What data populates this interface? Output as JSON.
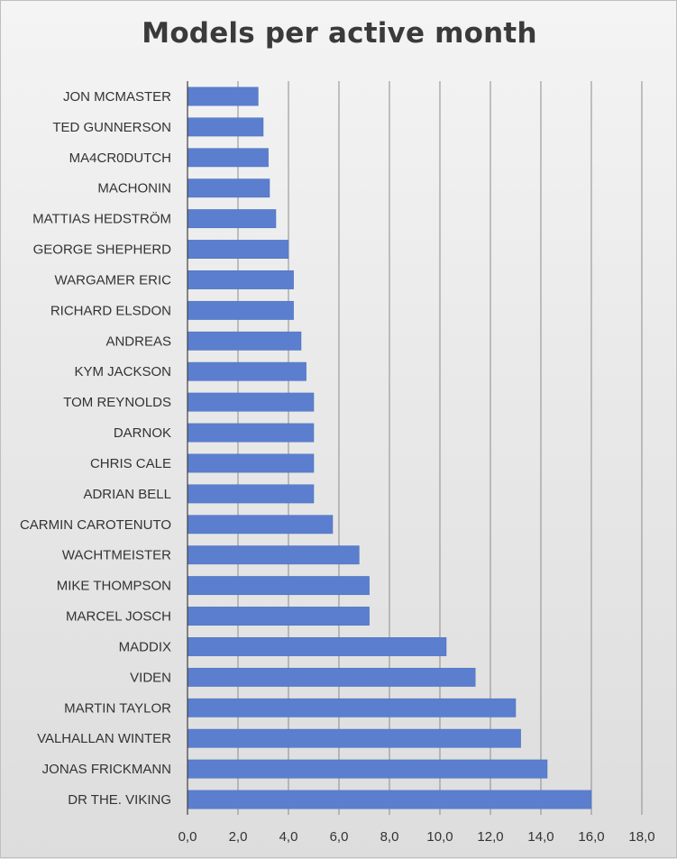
{
  "chart_data": {
    "type": "bar",
    "orientation": "horizontal",
    "title": "Models per active month",
    "xlabel": "",
    "ylabel": "",
    "xlim": [
      0,
      18
    ],
    "x_ticks": [
      "0,0",
      "2,0",
      "4,0",
      "6,0",
      "8,0",
      "10,0",
      "12,0",
      "14,0",
      "16,0",
      "18,0"
    ],
    "grid": "vertical",
    "bar_color": "#5b7fce",
    "categories": [
      "JON MCMASTER",
      "TED GUNNERSON",
      "MA4CR0DUTCH",
      "MACHONIN",
      "MATTIAS HEDSTRÖM",
      "GEORGE SHEPHERD",
      "WARGAMER ERIC",
      "RICHARD ELSDON",
      "ANDREAS",
      "KYM JACKSON",
      "TOM REYNOLDS",
      "DARNOK",
      "CHRIS CALE",
      "ADRIAN BELL",
      "CARMIN CAROTENUTO",
      "WACHTMEISTER",
      "MIKE THOMPSON",
      "MARCEL JOSCH",
      "MADDIX",
      "VIDEN",
      "MARTIN TAYLOR",
      "VALHALLAN WINTER",
      "JONAS FRICKMANN",
      "DR THE. VIKING"
    ],
    "values": [
      2.8,
      3.0,
      3.2,
      3.25,
      3.5,
      4.0,
      4.2,
      4.2,
      4.5,
      4.7,
      5.0,
      5.0,
      5.0,
      5.0,
      5.75,
      6.8,
      7.2,
      7.2,
      10.25,
      11.4,
      13.0,
      13.2,
      14.25,
      16.0
    ]
  }
}
